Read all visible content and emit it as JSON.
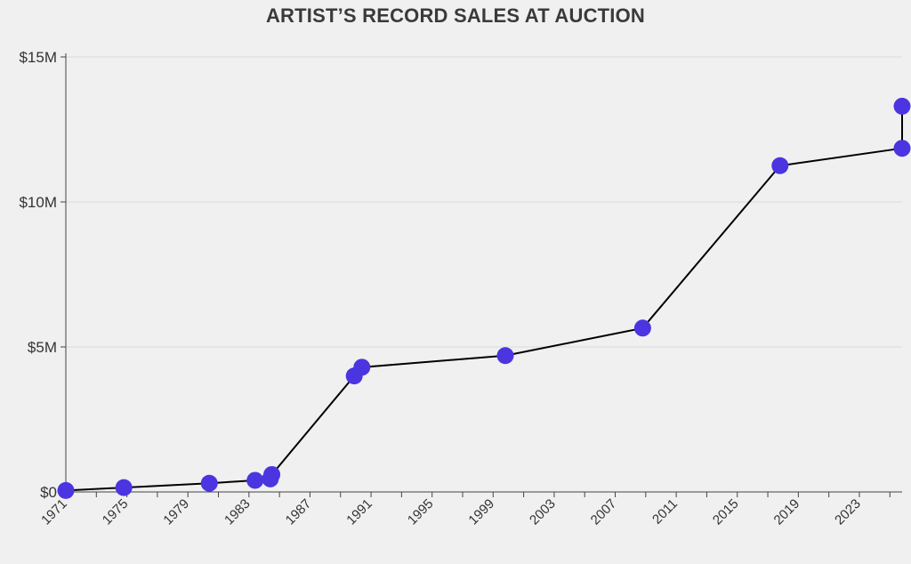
{
  "chart_data": {
    "type": "line",
    "title": "ARTIST’S RECORD SALES AT AUCTION",
    "xlabel": "",
    "ylabel": "",
    "xlim": [
      1971,
      2025.8
    ],
    "ylim": [
      0,
      15000000
    ],
    "y_ticks": [
      {
        "value": 0,
        "label": "$0"
      },
      {
        "value": 5000000,
        "label": "$5M"
      },
      {
        "value": 10000000,
        "label": "$10M"
      },
      {
        "value": 15000000,
        "label": "$15M"
      }
    ],
    "x_ticks_labeled": [
      1971,
      1975,
      1979,
      1983,
      1987,
      1991,
      1995,
      1999,
      2003,
      2007,
      2011,
      2015,
      2019,
      2023
    ],
    "x_ticks_minor_every": 2,
    "grid": "horizontal",
    "line_color": "#000000",
    "marker_color": "#4b35e0",
    "background": "#f0f0f0",
    "series": [
      {
        "x": [
          1971.0,
          1974.8,
          1980.4,
          1983.4,
          1984.4,
          1984.5,
          1989.9,
          1990.4,
          1999.8,
          2008.8,
          2017.8,
          2025.8,
          2025.8
        ],
        "y": [
          50000,
          150000,
          300000,
          400000,
          450000,
          600000,
          4000000,
          4300000,
          4700000,
          5650000,
          11250000,
          11850000,
          13300000
        ]
      }
    ]
  }
}
